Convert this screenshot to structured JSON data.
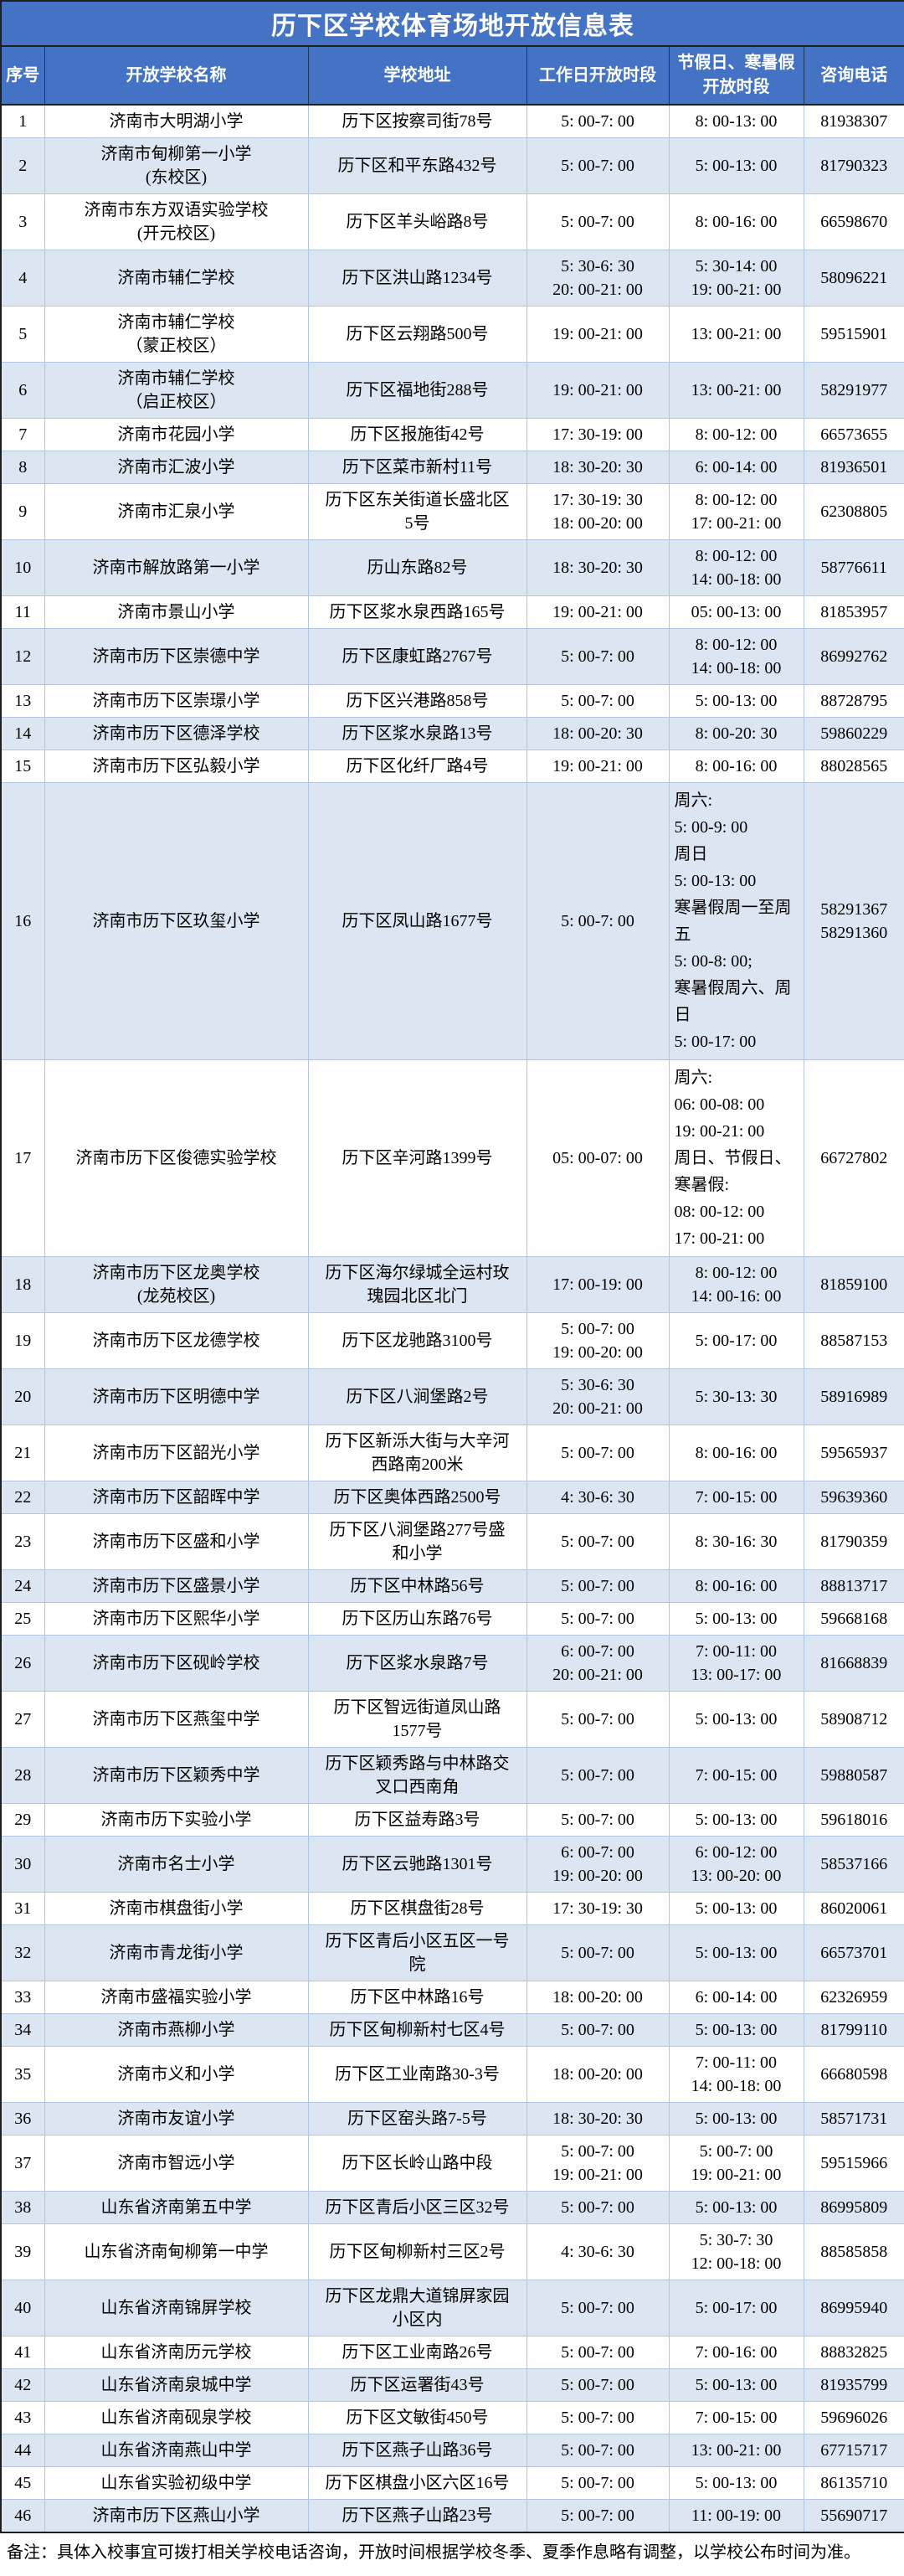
{
  "title": "历下区学校体育场地开放信息表",
  "note": "备注：具体入校事宜可拨打相关学校电话咨询，开放时间根据学校冬季、夏季作息略有调整，以学校公布时间为准。",
  "table": {
    "columns": [
      "序号",
      "开放学校名称",
      "学校地址",
      "工作日开放时段",
      "节假日、寒暑假开放时段",
      "咨询电话"
    ],
    "rows": [
      {
        "no": "1",
        "school": "济南市大明湖小学",
        "address": "历下区按察司街78号",
        "weekday": "5: 00-7: 00",
        "holiday": "8: 00-13: 00",
        "phone": "81938307"
      },
      {
        "no": "2",
        "school": "济南市甸柳第一小学\n(东校区)",
        "address": "历下区和平东路432号",
        "weekday": "5: 00-7: 00",
        "holiday": "5: 00-13: 00",
        "phone": "81790323"
      },
      {
        "no": "3",
        "school": "济南市东方双语实验学校\n(开元校区)",
        "address": "历下区羊头峪路8号",
        "weekday": "5: 00-7: 00",
        "holiday": "8: 00-16: 00",
        "phone": "66598670"
      },
      {
        "no": "4",
        "school": "济南市辅仁学校",
        "address": "历下区洪山路1234号",
        "weekday": "5: 30-6: 30\n20: 00-21: 00",
        "holiday": "5: 30-14: 00\n19: 00-21: 00",
        "phone": "58096221"
      },
      {
        "no": "5",
        "school": "济南市辅仁学校\n（蒙正校区）",
        "address": "历下区云翔路500号",
        "weekday": "19: 00-21: 00",
        "holiday": "13: 00-21: 00",
        "phone": "59515901"
      },
      {
        "no": "6",
        "school": "济南市辅仁学校\n（启正校区）",
        "address": "历下区福地街288号",
        "weekday": "19: 00-21: 00",
        "holiday": "13: 00-21: 00",
        "phone": "58291977"
      },
      {
        "no": "7",
        "school": "济南市花园小学",
        "address": "历下区报施街42号",
        "weekday": "17: 30-19: 00",
        "holiday": "8: 00-12: 00",
        "phone": "66573655"
      },
      {
        "no": "8",
        "school": "济南市汇波小学",
        "address": "历下区菜市新村11号",
        "weekday": "18: 30-20: 30",
        "holiday": "6: 00-14: 00",
        "phone": "81936501"
      },
      {
        "no": "9",
        "school": "济南市汇泉小学",
        "address": "历下区东关街道长盛北区\n5号",
        "weekday": "17: 30-19: 30\n18: 00-20: 00",
        "holiday": "8: 00-12: 00\n17: 00-21: 00",
        "phone": "62308805"
      },
      {
        "no": "10",
        "school": "济南市解放路第一小学",
        "address": "历山东路82号",
        "weekday": "18: 30-20: 30",
        "holiday": "8: 00-12: 00\n14: 00-18: 00",
        "phone": "58776611"
      },
      {
        "no": "11",
        "school": "济南市景山小学",
        "address": "历下区浆水泉西路165号",
        "weekday": "19: 00-21: 00",
        "holiday": "05: 00-13: 00",
        "phone": "81853957"
      },
      {
        "no": "12",
        "school": "济南市历下区崇德中学",
        "address": "历下区康虹路2767号",
        "weekday": "5: 00-7: 00",
        "holiday": "8: 00-12: 00\n14: 00-18: 00",
        "phone": "86992762"
      },
      {
        "no": "13",
        "school": "济南市历下区崇璟小学",
        "address": "历下区兴港路858号",
        "weekday": "5: 00-7: 00",
        "holiday": "5: 00-13: 00",
        "phone": "88728795"
      },
      {
        "no": "14",
        "school": "济南市历下区德泽学校",
        "address": "历下区浆水泉路13号",
        "weekday": "18: 00-20: 30",
        "holiday": "8: 00-20: 30",
        "phone": "59860229"
      },
      {
        "no": "15",
        "school": "济南市历下区弘毅小学",
        "address": "历下区化纤厂路4号",
        "weekday": "19: 00-21: 00",
        "holiday": "8: 00-16: 00",
        "phone": "88028565"
      },
      {
        "no": "16",
        "school": "济南市历下区玖玺小学",
        "address": "历下区凤山路1677号",
        "weekday": "5: 00-7: 00",
        "holiday": "周六:\n5: 00-9: 00\n周日\n5: 00-13: 00\n寒暑假周一至周五\n5: 00-8: 00;\n寒暑假周六、周日\n5: 00-17: 00",
        "phone": "58291367\n58291360"
      },
      {
        "no": "17",
        "school": "济南市历下区俊德实验学校",
        "address": "历下区辛河路1399号",
        "weekday": "05: 00-07: 00",
        "holiday": "周六:\n06: 00-08: 00\n19: 00-21: 00\n周日、节假日、寒暑假:\n08: 00-12: 00\n17: 00-21: 00",
        "phone": "66727802"
      },
      {
        "no": "18",
        "school": "济南市历下区龙奥学校\n(龙苑校区)",
        "address": "历下区海尔绿城全运村玫\n瑰园北区北门",
        "weekday": "17: 00-19: 00",
        "holiday": "8: 00-12: 00\n14: 00-16: 00",
        "phone": "81859100"
      },
      {
        "no": "19",
        "school": "济南市历下区龙德学校",
        "address": "历下区龙驰路3100号",
        "weekday": "5: 00-7: 00\n19: 00-20: 00",
        "holiday": "5: 00-17: 00",
        "phone": "88587153"
      },
      {
        "no": "20",
        "school": "济南市历下区明德中学",
        "address": "历下区八涧堡路2号",
        "weekday": "5: 30-6: 30\n20: 00-21: 00",
        "holiday": "5: 30-13: 30",
        "phone": "58916989"
      },
      {
        "no": "21",
        "school": "济南市历下区韶光小学",
        "address": "历下区新泺大街与大辛河\n西路南200米",
        "weekday": "5: 00-7: 00",
        "holiday": "8: 00-16: 00",
        "phone": "59565937"
      },
      {
        "no": "22",
        "school": "济南市历下区韶晖中学",
        "address": "历下区奥体西路2500号",
        "weekday": "4: 30-6: 30",
        "holiday": "7: 00-15: 00",
        "phone": "59639360"
      },
      {
        "no": "23",
        "school": "济南市历下区盛和小学",
        "address": "历下区八涧堡路277号盛\n和小学",
        "weekday": "5: 00-7: 00",
        "holiday": "8: 30-16: 30",
        "phone": "81790359"
      },
      {
        "no": "24",
        "school": "济南市历下区盛景小学",
        "address": "历下区中林路56号",
        "weekday": "5: 00-7: 00",
        "holiday": "8: 00-16: 00",
        "phone": "88813717"
      },
      {
        "no": "25",
        "school": "济南市历下区熙华小学",
        "address": "历下区历山东路76号",
        "weekday": "5: 00-7: 00",
        "holiday": "5: 00-13: 00",
        "phone": "59668168"
      },
      {
        "no": "26",
        "school": "济南市历下区砚岭学校",
        "address": "历下区浆水泉路7号",
        "weekday": "6: 00-7: 00\n20: 00-21: 00",
        "holiday": "7: 00-11: 00\n13: 00-17: 00",
        "phone": "81668839"
      },
      {
        "no": "27",
        "school": "济南市历下区燕玺中学",
        "address": "历下区智远街道凤山路\n1577号",
        "weekday": "5: 00-7: 00",
        "holiday": "5: 00-13: 00",
        "phone": "58908712"
      },
      {
        "no": "28",
        "school": "济南市历下区颖秀中学",
        "address": "历下区颖秀路与中林路交\n叉口西南角",
        "weekday": "5: 00-7: 00",
        "holiday": "7: 00-15: 00",
        "phone": "59880587"
      },
      {
        "no": "29",
        "school": "济南市历下实验小学",
        "address": "历下区益寿路3号",
        "weekday": "5: 00-7: 00",
        "holiday": "5: 00-13: 00",
        "phone": "59618016"
      },
      {
        "no": "30",
        "school": "济南市名士小学",
        "address": "历下区云驰路1301号",
        "weekday": "6: 00-7: 00\n19: 00-20: 00",
        "holiday": "6: 00-12: 00\n13: 00-20: 00",
        "phone": "58537166"
      },
      {
        "no": "31",
        "school": "济南市棋盘街小学",
        "address": "历下区棋盘街28号",
        "weekday": "17: 30-19: 30",
        "holiday": "5: 00-13: 00",
        "phone": "86020061"
      },
      {
        "no": "32",
        "school": "济南市青龙街小学",
        "address": "历下区青后小区五区一号\n院",
        "weekday": "5: 00-7: 00",
        "holiday": "5: 00-13: 00",
        "phone": "66573701"
      },
      {
        "no": "33",
        "school": "济南市盛福实验小学",
        "address": "历下区中林路16号",
        "weekday": "18: 00-20: 00",
        "holiday": "6: 00-14: 00",
        "phone": "62326959"
      },
      {
        "no": "34",
        "school": "济南市燕柳小学",
        "address": "历下区甸柳新村七区4号",
        "weekday": "5: 00-7: 00",
        "holiday": "5: 00-13: 00",
        "phone": "81799110"
      },
      {
        "no": "35",
        "school": "济南市义和小学",
        "address": "历下区工业南路30-3号",
        "weekday": "18: 00-20: 00",
        "holiday": "7: 00-11: 00\n14: 00-18: 00",
        "phone": "66680598"
      },
      {
        "no": "36",
        "school": "济南市友谊小学",
        "address": "历下区窑头路7-5号",
        "weekday": "18: 30-20: 30",
        "holiday": "5: 00-13: 00",
        "phone": "58571731"
      },
      {
        "no": "37",
        "school": "济南市智远小学",
        "address": "历下区长岭山路中段",
        "weekday": "5: 00-7: 00\n19: 00-21: 00",
        "holiday": "5: 00-7: 00\n19: 00-21: 00",
        "phone": "59515966"
      },
      {
        "no": "38",
        "school": "山东省济南第五中学",
        "address": "历下区青后小区三区32号",
        "weekday": "5: 00-7: 00",
        "holiday": "5: 00-13: 00",
        "phone": "86995809"
      },
      {
        "no": "39",
        "school": "山东省济南甸柳第一中学",
        "address": "历下区甸柳新村三区2号",
        "weekday": "4: 30-6: 30",
        "holiday": "5: 30-7: 30\n12: 00-18: 00",
        "phone": "88585858"
      },
      {
        "no": "40",
        "school": "山东省济南锦屏学校",
        "address": "历下区龙鼎大道锦屏家园\n小区内",
        "weekday": "5: 00-7: 00",
        "holiday": "5: 00-17: 00",
        "phone": "86995940"
      },
      {
        "no": "41",
        "school": "山东省济南历元学校",
        "address": "历下区工业南路26号",
        "weekday": "5: 00-7: 00",
        "holiday": "7: 00-16: 00",
        "phone": "88832825"
      },
      {
        "no": "42",
        "school": "山东省济南泉城中学",
        "address": "历下区运署街43号",
        "weekday": "5: 00-7: 00",
        "holiday": "5: 00-13: 00",
        "phone": "81935799"
      },
      {
        "no": "43",
        "school": "山东省济南砚泉学校",
        "address": "历下区文敏街450号",
        "weekday": "5: 00-7: 00",
        "holiday": "7: 00-15: 00",
        "phone": "59696026"
      },
      {
        "no": "44",
        "school": "山东省济南燕山中学",
        "address": "历下区燕子山路36号",
        "weekday": "5: 00-7: 00",
        "holiday": "13: 00-21: 00",
        "phone": "67715717"
      },
      {
        "no": "45",
        "school": "山东省实验初级中学",
        "address": "历下区棋盘小区六区16号",
        "weekday": "5: 00-7: 00",
        "holiday": "5: 00-13: 00",
        "phone": "86135710"
      },
      {
        "no": "46",
        "school": "济南市历下区燕山小学",
        "address": "历下区燕子山路23号",
        "weekday": "5: 00-7: 00",
        "holiday": "11: 00-19: 00",
        "phone": "55690717"
      }
    ]
  }
}
